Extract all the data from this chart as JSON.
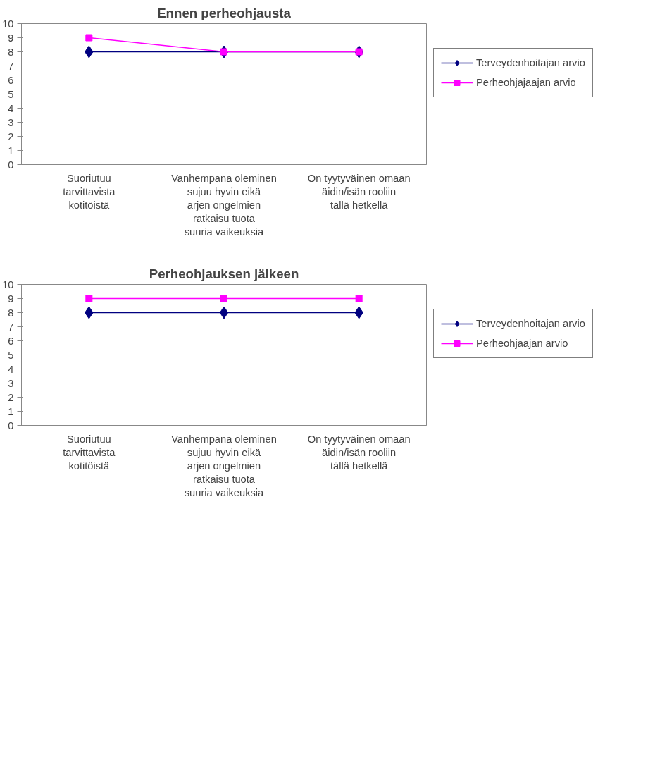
{
  "chart_data": [
    {
      "type": "line",
      "title": "Ennen perheohjausta",
      "categories": [
        "Suoriutuu tarvittavista kotitöistä",
        "Vanhempana oleminen sujuu hyvin eikä arjen ongelmien ratkaisu tuota suuria vaikeuksia",
        "On tyytyväinen omaan äidin/isän rooliin tällä hetkellä"
      ],
      "series": [
        {
          "name": "Terveydenhoitajan arvio",
          "color": "#000080",
          "marker": "diamond",
          "values": [
            8,
            8,
            8
          ]
        },
        {
          "name": "Perheohjajaajan arvio",
          "color": "#ff00ff",
          "marker": "square",
          "values": [
            9,
            8,
            8
          ]
        }
      ],
      "ylim": [
        0,
        10
      ],
      "yticks": [
        0,
        1,
        2,
        3,
        4,
        5,
        6,
        7,
        8,
        9,
        10
      ],
      "grid": false,
      "legend": "right"
    },
    {
      "type": "line",
      "title": "Perheohjauksen jälkeen",
      "categories": [
        "Suoriutuu tarvittavista kotitöistä",
        "Vanhempana oleminen sujuu hyvin eikä arjen ongelmien ratkaisu tuota suuria vaikeuksia",
        "On tyytyväinen omaan äidin/isän rooliin tällä hetkellä"
      ],
      "series": [
        {
          "name": "Terveydenhoitajan arvio",
          "color": "#000080",
          "marker": "diamond",
          "values": [
            8,
            8,
            8
          ]
        },
        {
          "name": "Perheohjaajan arvio",
          "color": "#ff00ff",
          "marker": "square",
          "values": [
            9,
            9,
            9
          ]
        }
      ],
      "ylim": [
        0,
        10
      ],
      "yticks": [
        0,
        1,
        2,
        3,
        4,
        5,
        6,
        7,
        8,
        9,
        10
      ],
      "grid": false,
      "legend": "right"
    }
  ]
}
